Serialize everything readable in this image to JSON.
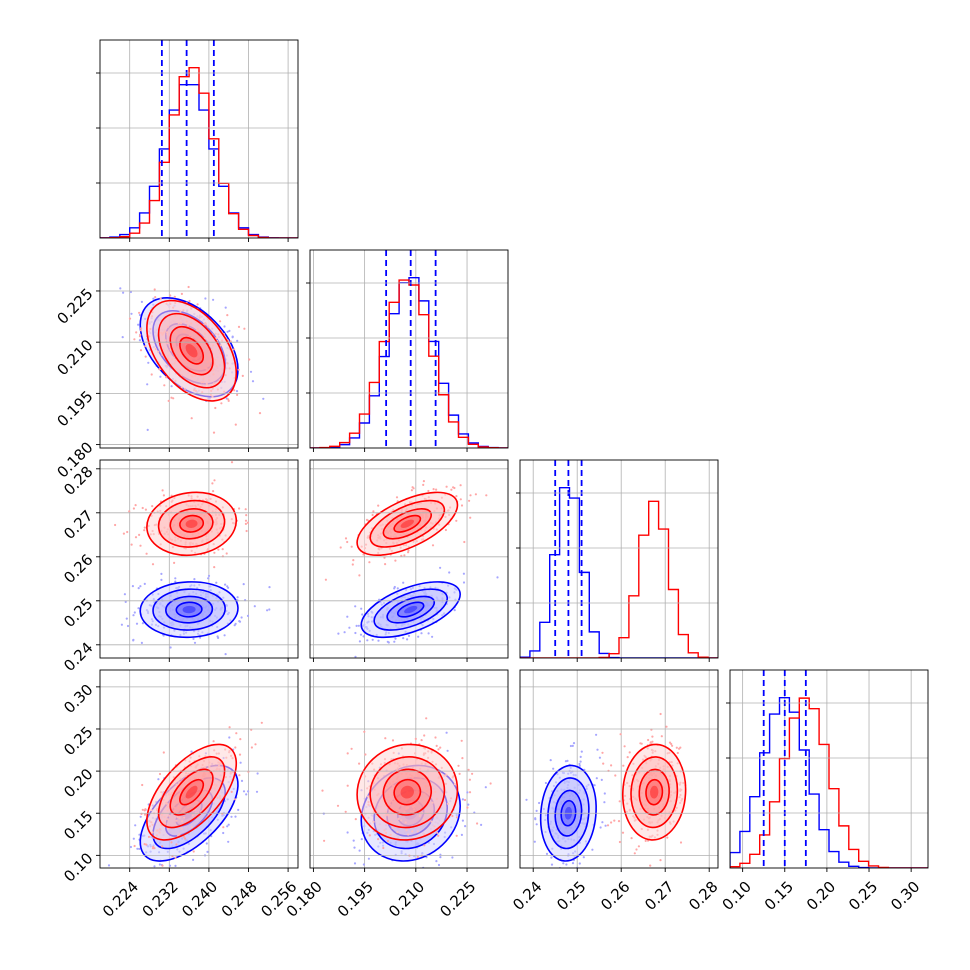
{
  "colors": {
    "series_a": "#0000ff",
    "series_b": "#ff0000",
    "grid": "#b0b0b0",
    "axes": "#000000"
  },
  "chart_data": {
    "type": "corner",
    "parameters": [
      {
        "range": [
          0.218,
          0.258
        ],
        "ticks": [
          0.224,
          0.232,
          0.24,
          0.248,
          0.256
        ],
        "tick_labels": [
          "0.224",
          "0.232",
          "0.240",
          "0.248",
          "0.256"
        ]
      },
      {
        "range": [
          0.179,
          0.237
        ],
        "ticks": [
          0.18,
          0.195,
          0.21,
          0.225
        ],
        "tick_labels": [
          "0.180",
          "0.195",
          "0.210",
          "0.225"
        ]
      },
      {
        "range": [
          0.237,
          0.282
        ],
        "ticks": [
          0.24,
          0.25,
          0.26,
          0.27,
          0.28
        ],
        "tick_labels": [
          "0.24",
          "0.25",
          "0.26",
          "0.27",
          "0.28"
        ]
      },
      {
        "range": [
          0.085,
          0.32
        ],
        "ticks": [
          0.1,
          0.15,
          0.2,
          0.25,
          0.3
        ],
        "tick_labels": [
          "0.10",
          "0.15",
          "0.20",
          "0.25",
          "0.30"
        ]
      }
    ],
    "series": [
      {
        "color": "#0000ff",
        "mean": [
          0.236,
          0.2085,
          0.248,
          0.15
        ],
        "std": [
          0.0047,
          0.0069,
          0.003,
          0.027
        ],
        "corr": [
          [
            1,
            -0.45,
            0.05,
            0.6
          ],
          [
            -0.45,
            1,
            0.55,
            0.15
          ],
          [
            0.05,
            0.55,
            1,
            0.1
          ],
          [
            0.6,
            0.15,
            0.1,
            1
          ]
        ],
        "quantiles": [
          [
            0.2305,
            0.2355,
            0.241
          ],
          [
            0.2013,
            0.2085,
            0.2158
          ],
          [
            0.245,
            0.248,
            0.251
          ],
          [
            0.125,
            0.15,
            0.175
          ]
        ]
      },
      {
        "color": "#ff0000",
        "mean": [
          0.2365,
          0.2075,
          0.2675,
          0.175
        ],
        "std": [
          0.0043,
          0.007,
          0.0034,
          0.027
        ],
        "corr": [
          [
            1,
            -0.45,
            0.1,
            0.6
          ],
          [
            -0.45,
            1,
            0.6,
            0.05
          ],
          [
            0.1,
            0.6,
            1,
            0.05
          ],
          [
            0.6,
            0.05,
            0.05,
            1
          ]
        ]
      }
    ],
    "grid": true
  }
}
